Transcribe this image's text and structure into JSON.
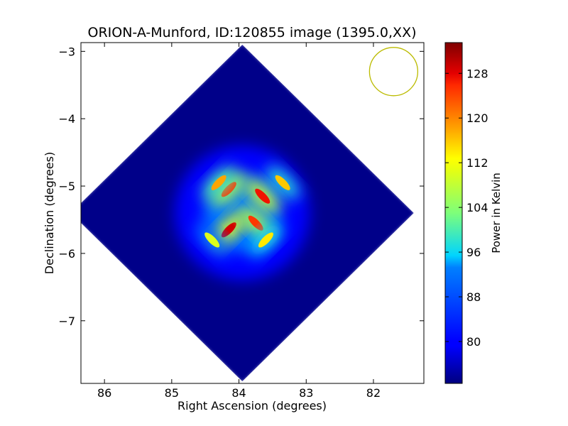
{
  "chart_data": {
    "type": "heatmap",
    "title": "ORION-A-Munford, ID:120855 image (1395.0,XX)",
    "xlabel": "Right Ascension (degrees)",
    "ylabel": "Declination (degrees)",
    "xlim": [
      86.35,
      81.25
    ],
    "ylim": [
      -7.93,
      -2.87
    ],
    "xticks": [
      86,
      85,
      84,
      83,
      82
    ],
    "xtick_labels": [
      "86",
      "85",
      "84",
      "83",
      "82"
    ],
    "yticks": [
      -3,
      -4,
      -5,
      -6,
      -7
    ],
    "ytick_labels": [
      "−3",
      "−4",
      "−5",
      "−6",
      "−7"
    ],
    "colorbar": {
      "label": "Power in Kelvin",
      "colormap": "jet",
      "range": [
        72.5,
        133.5
      ],
      "ticks": [
        80,
        88,
        96,
        104,
        112,
        120,
        128
      ],
      "tick_labels": [
        "80",
        "88",
        "96",
        "104",
        "112",
        "120",
        "128"
      ]
    },
    "map": {
      "shape": "diamond",
      "center": [
        83.95,
        -5.4
      ],
      "half_diagonal_ra": 2.55,
      "half_diagonal_dec": 2.5,
      "background_value": 73,
      "peak_value": 133,
      "emission_features": [
        {
          "ra": 84.15,
          "dec": -5.65,
          "value": 129
        },
        {
          "ra": 83.65,
          "dec": -5.15,
          "value": 127
        },
        {
          "ra": 84.15,
          "dec": -5.05,
          "value": 125
        },
        {
          "ra": 83.75,
          "dec": -5.55,
          "value": 125
        },
        {
          "ra": 84.3,
          "dec": -4.95,
          "value": 118
        },
        {
          "ra": 83.35,
          "dec": -4.95,
          "value": 116
        },
        {
          "ra": 83.6,
          "dec": -5.8,
          "value": 114
        },
        {
          "ra": 84.4,
          "dec": -5.8,
          "value": 110
        }
      ]
    },
    "beam": {
      "ra": 81.7,
      "dec": -3.3,
      "color": "#bbbb00"
    },
    "grid": false,
    "colors": {
      "axes": "#000000",
      "background": "#ffffff"
    }
  }
}
